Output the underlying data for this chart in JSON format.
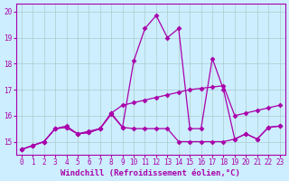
{
  "bg_color": "#cceeff",
  "line_color": "#aa00aa",
  "grid_color": "#aacccc",
  "xlim_min": -0.5,
  "xlim_max": 23.5,
  "ylim_min": 14.5,
  "ylim_max": 20.3,
  "yticks": [
    15,
    16,
    17,
    18,
    19,
    20
  ],
  "xticks": [
    0,
    1,
    2,
    3,
    4,
    5,
    6,
    7,
    8,
    9,
    10,
    11,
    12,
    13,
    14,
    15,
    16,
    17,
    18,
    19,
    20,
    21,
    22,
    23
  ],
  "line1_x": [
    0,
    1,
    2,
    3,
    4,
    5,
    6,
    7,
    8,
    9,
    10,
    11,
    12,
    13,
    14,
    15,
    16,
    17,
    18,
    19,
    20,
    21,
    22,
    23
  ],
  "line1_y": [
    14.7,
    14.85,
    15.0,
    15.5,
    15.55,
    15.3,
    15.35,
    15.5,
    16.1,
    15.55,
    18.1,
    19.35,
    19.85,
    19.0,
    19.35,
    15.5,
    15.5,
    18.2,
    17.0,
    15.1,
    15.3,
    15.1,
    15.55,
    15.6
  ],
  "line2_x": [
    0,
    1,
    2,
    3,
    4,
    5,
    6,
    7,
    8,
    9,
    10,
    11,
    12,
    13,
    14,
    15,
    16,
    17,
    18,
    19,
    20,
    21,
    22,
    23
  ],
  "line2_y": [
    14.7,
    14.85,
    15.0,
    15.5,
    15.6,
    15.3,
    15.4,
    15.5,
    16.1,
    16.4,
    16.5,
    16.6,
    16.7,
    16.8,
    16.9,
    17.0,
    17.05,
    17.1,
    17.15,
    16.0,
    16.1,
    16.2,
    16.3,
    16.4
  ],
  "line3_x": [
    0,
    1,
    2,
    3,
    4,
    5,
    6,
    7,
    8,
    9,
    10,
    11,
    12,
    13,
    14,
    15,
    16,
    17,
    18,
    19,
    20,
    21,
    22,
    23
  ],
  "line3_y": [
    14.7,
    14.85,
    15.0,
    15.5,
    15.55,
    15.3,
    15.35,
    15.5,
    16.05,
    15.55,
    15.5,
    15.5,
    15.5,
    15.5,
    15.0,
    15.0,
    15.0,
    15.0,
    15.0,
    15.1,
    15.3,
    15.1,
    15.55,
    15.6
  ],
  "marker": "D",
  "marker_size": 2.5,
  "linewidth": 0.9,
  "xlabel": "Windchill (Refroidissement éolien,°C)",
  "xlabel_fontsize": 6.5,
  "tick_fontsize": 5.5
}
